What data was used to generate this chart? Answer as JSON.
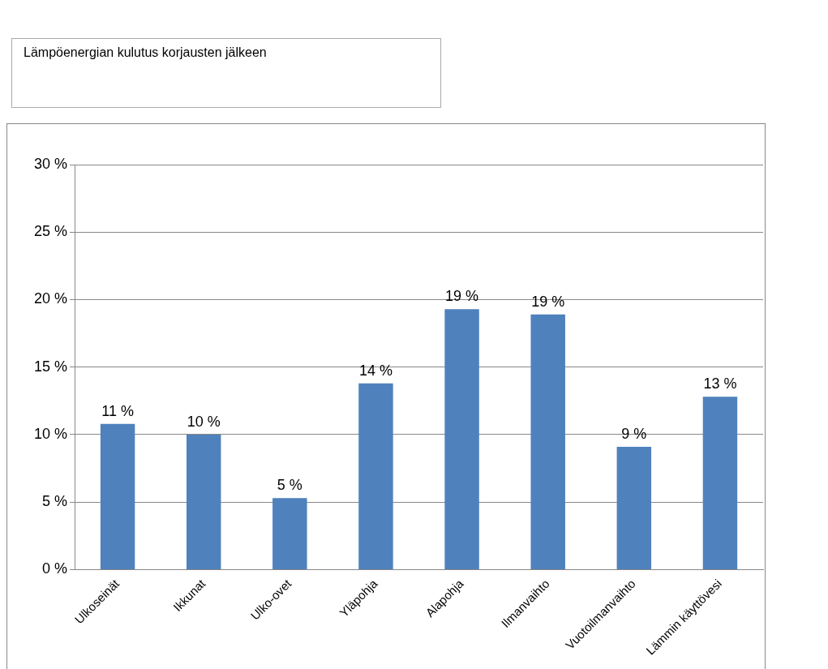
{
  "chart_data": {
    "type": "bar",
    "title": "Lämpöenergian kulutus korjausten jälkeen",
    "categories": [
      "Ulkoseinät",
      "Ikkunat",
      "Ulko-ovet",
      "Yläpohja",
      "Alapohja",
      "Ilmanvaihto",
      "Vuotoilmanvaihto",
      "Lämmin käyttövesi"
    ],
    "values": [
      10.8,
      10.0,
      5.3,
      13.8,
      19.3,
      18.9,
      9.1,
      12.8
    ],
    "value_labels": [
      "11 %",
      "10 %",
      "5 %",
      "14 %",
      "19 %",
      "19 %",
      "9 %",
      "13 %"
    ],
    "color": "#4f81bd",
    "ylim": [
      0,
      30
    ],
    "yticks": [
      {
        "value": 0,
        "label": "0 %"
      },
      {
        "value": 5,
        "label": "5 %"
      },
      {
        "value": 10,
        "label": "10 %"
      },
      {
        "value": 15,
        "label": "15 %"
      },
      {
        "value": 20,
        "label": "20 %"
      },
      {
        "value": 25,
        "label": "25 %"
      },
      {
        "value": 30,
        "label": "30 %"
      }
    ],
    "grid": "y",
    "legend": false
  }
}
